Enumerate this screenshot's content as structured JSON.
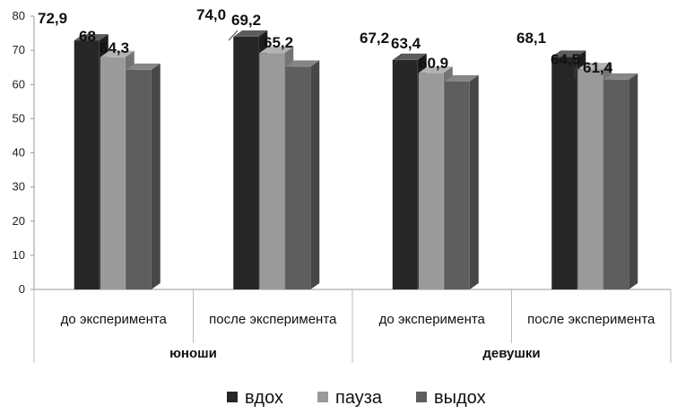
{
  "chart_data": {
    "type": "bar",
    "categories": [
      "до эксперимента",
      "после эксперимента",
      "до эксперимента",
      "после эксперимента"
    ],
    "groups": [
      "юноши",
      "девушки"
    ],
    "series": [
      {
        "name": "вдох",
        "values": [
          72.9,
          74.0,
          67.2,
          68.1
        ],
        "labels": [
          "72,9",
          "74,0",
          "67,2",
          "68,1"
        ]
      },
      {
        "name": "пауза",
        "values": [
          68,
          69.2,
          63.4,
          64.5
        ],
        "labels": [
          "68",
          "69,2",
          "63,4",
          "64,5"
        ]
      },
      {
        "name": "выдох",
        "values": [
          64.3,
          65.2,
          60.9,
          61.4
        ],
        "labels": [
          "64,3",
          "65,2",
          "60,9",
          "61,4"
        ]
      }
    ],
    "ylim": [
      0,
      80
    ],
    "yticks": [
      "0",
      "10",
      "20",
      "30",
      "40",
      "50",
      "60",
      "70",
      "80"
    ],
    "colors": [
      "#262626",
      "#9a9a9a",
      "#5e5e5e"
    ],
    "legend_position": "bottom",
    "grid": false
  }
}
